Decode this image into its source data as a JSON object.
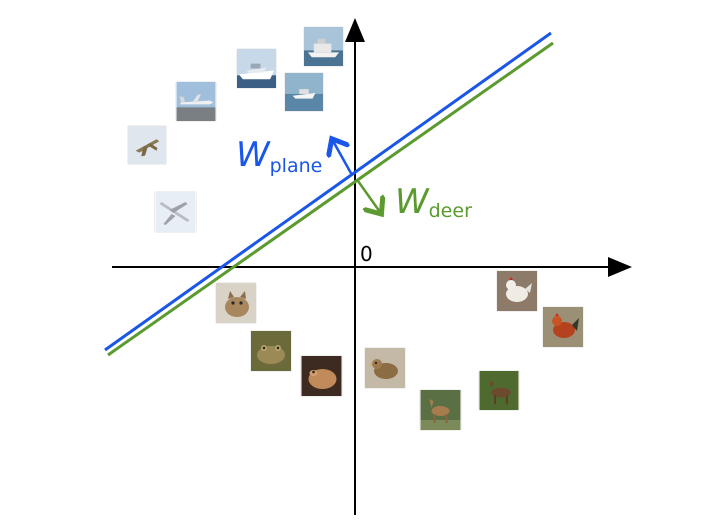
{
  "origin_label": "0",
  "weights": {
    "plane": {
      "main": "W",
      "sub": "plane",
      "color": "#1a56e8"
    },
    "deer": {
      "main": "W",
      "sub": "deer",
      "color": "#5a9a2e"
    }
  },
  "colors": {
    "axis": "#000000",
    "plane_line": "#1a56e8",
    "deer_line": "#5a9a2e"
  },
  "images": {
    "plane_class": [
      "ship-icon",
      "ship-icon",
      "ship-icon",
      "airplane-icon",
      "airplane-icon",
      "airplane-icon"
    ],
    "deer_class": [
      "cat-icon",
      "frog-icon",
      "frog-icon",
      "bird-icon",
      "deer-icon",
      "deer-icon",
      "rooster-icon",
      "rooster-icon"
    ]
  }
}
